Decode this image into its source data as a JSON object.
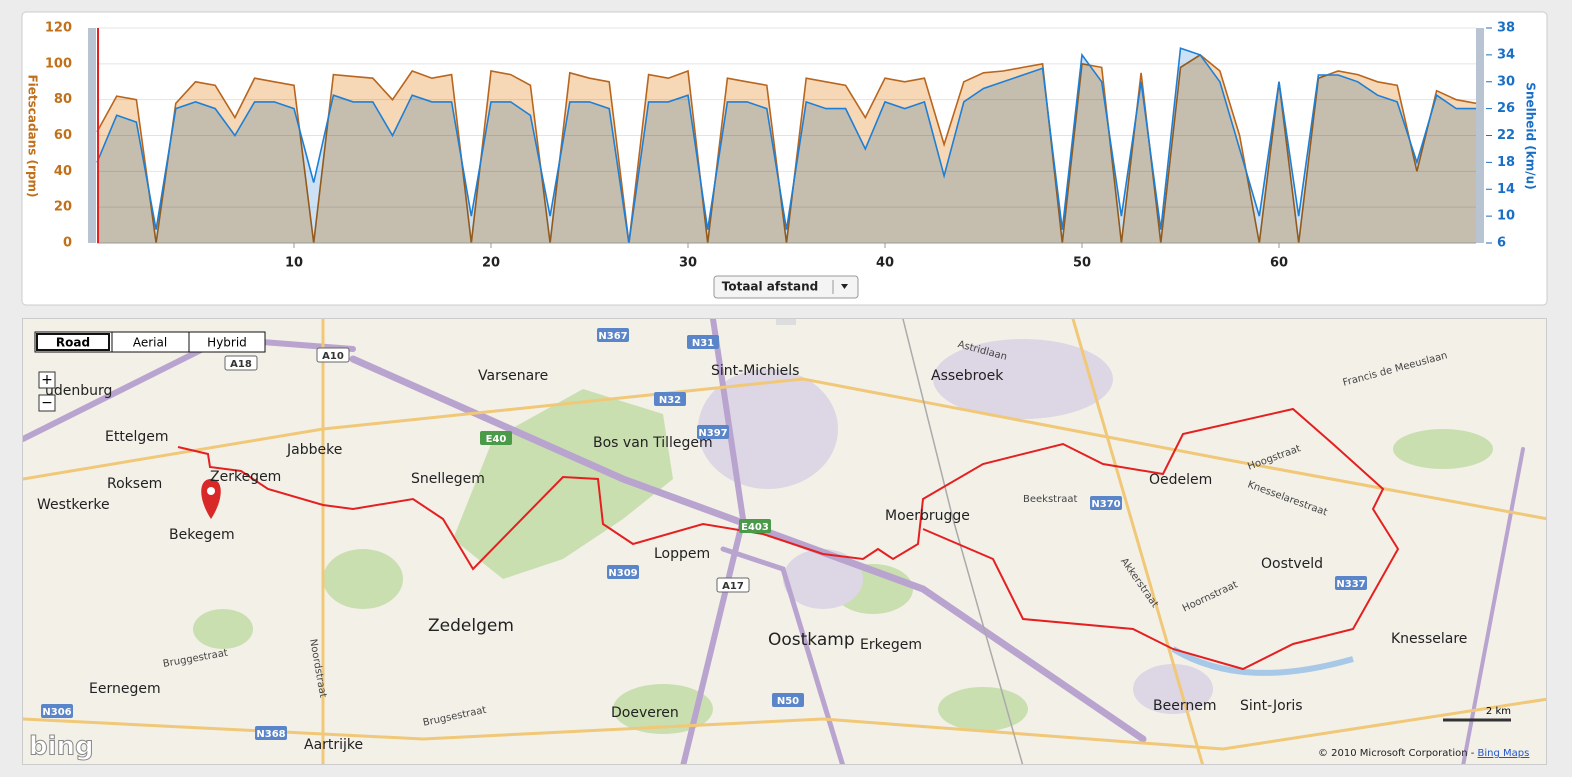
{
  "chart_data": {
    "type": "area",
    "x_label": "Totaal afstand",
    "y_label": "Fietscadans (rpm)",
    "y2_label": "Snelheid (km/u)",
    "xlim": [
      0,
      70
    ],
    "xticks": [
      10,
      20,
      30,
      40,
      50,
      60
    ],
    "ylim": [
      0,
      120
    ],
    "yticks": [
      0,
      20,
      40,
      60,
      80,
      100,
      120
    ],
    "y2lim": [
      6,
      38
    ],
    "y2ticks": [
      6,
      10,
      14,
      18,
      22,
      26,
      30,
      34,
      38
    ],
    "grid": true,
    "x": [
      0,
      1,
      2,
      3,
      4,
      5,
      6,
      7,
      8,
      9,
      10,
      11,
      12,
      13,
      14,
      15,
      16,
      17,
      18,
      19,
      20,
      21,
      22,
      23,
      24,
      25,
      26,
      27,
      28,
      29,
      30,
      31,
      32,
      33,
      34,
      35,
      36,
      37,
      38,
      39,
      40,
      41,
      42,
      43,
      44,
      45,
      46,
      47,
      48,
      49,
      50,
      51,
      52,
      53,
      54,
      55,
      56,
      57,
      58,
      59,
      60,
      61,
      62,
      63,
      64,
      65,
      66,
      67,
      68,
      69,
      70
    ],
    "series": [
      {
        "name": "Fietscadans",
        "color": "#b8661e",
        "values": [
          62,
          82,
          80,
          0,
          78,
          90,
          88,
          70,
          92,
          90,
          88,
          0,
          94,
          93,
          92,
          80,
          96,
          92,
          94,
          0,
          96,
          94,
          88,
          0,
          95,
          92,
          90,
          0,
          94,
          92,
          96,
          0,
          92,
          90,
          88,
          0,
          92,
          90,
          88,
          70,
          92,
          90,
          92,
          55,
          90,
          95,
          96,
          98,
          100,
          0,
          100,
          98,
          0,
          95,
          0,
          98,
          105,
          96,
          60,
          0,
          90,
          0,
          92,
          96,
          94,
          90,
          88,
          40,
          85,
          80,
          78
        ]
      },
      {
        "name": "Snelheid",
        "color": "#1e7fd6",
        "axis": "y2",
        "values": [
          18,
          25,
          24,
          8,
          26,
          27,
          26,
          22,
          27,
          27,
          26,
          15,
          28,
          27,
          27,
          22,
          28,
          27,
          27,
          10,
          27,
          27,
          25,
          10,
          27,
          27,
          26,
          6,
          27,
          27,
          28,
          8,
          27,
          27,
          26,
          8,
          27,
          26,
          26,
          20,
          27,
          26,
          27,
          16,
          27,
          29,
          30,
          31,
          32,
          8,
          34,
          30,
          10,
          30,
          8,
          35,
          34,
          30,
          20,
          10,
          30,
          10,
          31,
          31,
          30,
          28,
          27,
          18,
          28,
          26,
          26
        ]
      }
    ]
  },
  "map": {
    "view_buttons": [
      "Road",
      "Aerial",
      "Hybrid"
    ],
    "zoom": [
      "+",
      "−"
    ],
    "labels": [
      "udenburg",
      "Varsenare",
      "Sint-Michiels",
      "Assebroek",
      "Ettelgem",
      "Jabbeke",
      "Snellegem",
      "Zerkegem",
      "Roksem",
      "Westkerke",
      "Bekegem",
      "Bos van Tillegem",
      "Moerbrugge",
      "Oedelem",
      "Loppem",
      "Zedelgem",
      "Oostkamp",
      "Erkegem",
      "Oostveld",
      "Knesselare",
      "Eernegem",
      "Aartrijke",
      "Beernem",
      "Sint-Joris",
      "Doeveren"
    ],
    "streets": [
      "Beekstraat",
      "Hoogstraat",
      "Knesselarestraat",
      "Brugsestraat",
      "Bruggestraat",
      "Francis de Meeuslaan",
      "Astridlaan",
      "Noordstraat",
      "Hoornstraat",
      "Akkerstraat"
    ],
    "shields": [
      "N367",
      "N31",
      "N32",
      "N397",
      "E40",
      "A10",
      "A18",
      "N309",
      "A17",
      "N50",
      "N368",
      "N370",
      "N337",
      "N306",
      "E403"
    ],
    "scale": "2 km",
    "logo": "bing",
    "copyright": "© 2010 Microsoft Corporation - ",
    "copyright_link": "Bing Maps"
  }
}
